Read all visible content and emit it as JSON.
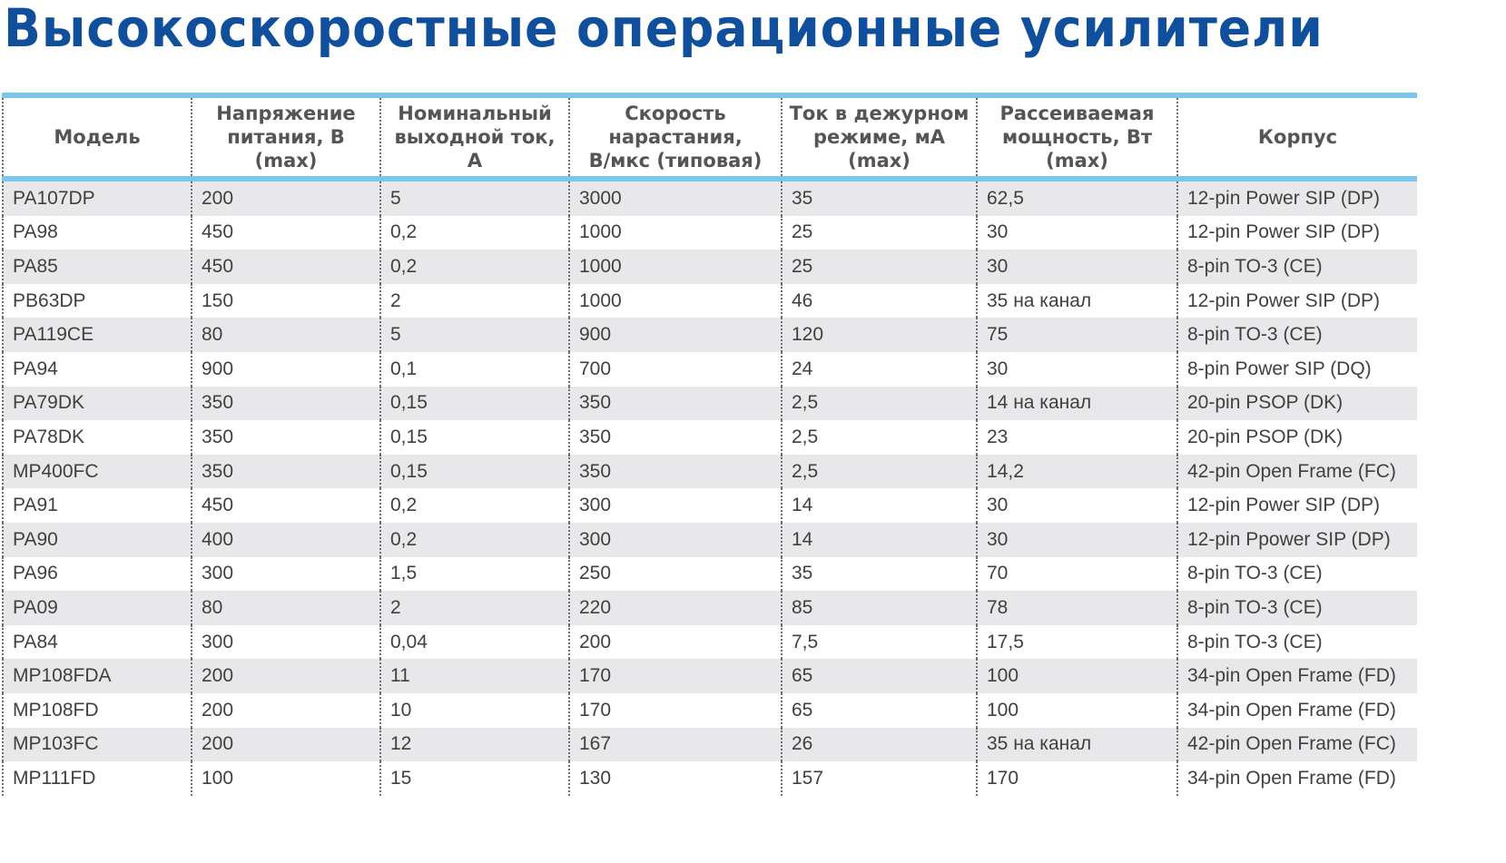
{
  "title": "Высокоскоростные операционные усилители",
  "colors": {
    "title": "#0f4f9c",
    "rule": "#7cc6ea",
    "stripe": "#e8e8ea"
  },
  "columns": [
    [
      "Модель"
    ],
    [
      "Напряжение",
      "питания, В (max)"
    ],
    [
      "Номинальный",
      "выходной ток, А"
    ],
    [
      "Скорость",
      "нарастания,",
      "В/мкс (типовая)"
    ],
    [
      "Ток в дежурном",
      "режиме, мА (max)"
    ],
    [
      "Рассеиваемая",
      "мощность, Вт (max)"
    ],
    [
      "Корпус"
    ]
  ],
  "rows": [
    [
      "PA107DP",
      "200",
      "5",
      "3000",
      "35",
      "62,5",
      "12-pin Power SIP (DP)"
    ],
    [
      "PA98",
      "450",
      "0,2",
      "1000",
      "25",
      "30",
      "12-pin Power SIP (DP)"
    ],
    [
      "PA85",
      "450",
      "0,2",
      "1000",
      "25",
      "30",
      "8-pin TO-3 (CE)"
    ],
    [
      "PB63DP",
      "150",
      "2",
      "1000",
      "46",
      "35 на канал",
      "12-pin Power SIP (DP)"
    ],
    [
      "PA119CE",
      "80",
      "5",
      "900",
      "120",
      "75",
      "8-pin TO-3 (CE)"
    ],
    [
      "PA94",
      "900",
      "0,1",
      "700",
      "24",
      "30",
      "8-pin Power SIP (DQ)"
    ],
    [
      "PA79DK",
      "350",
      "0,15",
      "350",
      "2,5",
      "14 на канал",
      "20-pin PSOP (DK)"
    ],
    [
      "PA78DK",
      "350",
      "0,15",
      "350",
      "2,5",
      "23",
      "20-pin PSOP (DK)"
    ],
    [
      "MP400FC",
      "350",
      "0,15",
      "350",
      "2,5",
      "14,2",
      "42-pin Open Frame (FC)"
    ],
    [
      "PA91",
      "450",
      "0,2",
      "300",
      "14",
      "30",
      "12-pin Power SIP (DP)"
    ],
    [
      "PA90",
      "400",
      "0,2",
      "300",
      "14",
      "30",
      "12-pin Ppower SIP (DP)"
    ],
    [
      "PA96",
      "300",
      "1,5",
      "250",
      "35",
      "70",
      "8-pin TO-3 (CE)"
    ],
    [
      "PA09",
      "80",
      "2",
      "220",
      "85",
      "78",
      "8-pin TO-3 (CE)"
    ],
    [
      "PA84",
      "300",
      "0,04",
      "200",
      "7,5",
      "17,5",
      "8-pin TO-3 (CE)"
    ],
    [
      "MP108FDA",
      "200",
      "11",
      "170",
      "65",
      "100",
      "34-pin Open Frame (FD)"
    ],
    [
      "MP108FD",
      "200",
      "10",
      "170",
      "65",
      "100",
      "34-pin Open Frame (FD)"
    ],
    [
      "MP103FC",
      "200",
      "12",
      "167",
      "26",
      "35 на канал",
      "42-pin Open Frame (FC)"
    ],
    [
      "MP111FD",
      "100",
      "15",
      "130",
      "157",
      "170",
      "34-pin Open Frame (FD)"
    ]
  ]
}
